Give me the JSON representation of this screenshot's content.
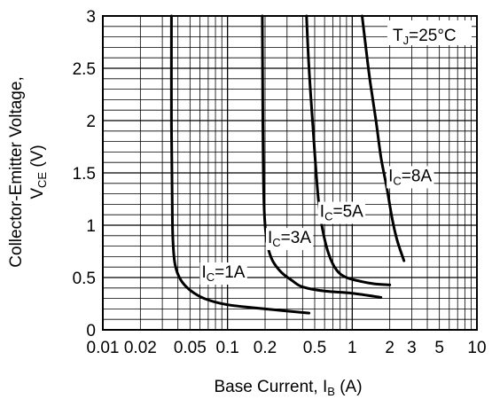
{
  "chart_data": {
    "type": "line",
    "x_scale": "log",
    "xlim": [
      0.01,
      10
    ],
    "ylim": [
      0,
      3
    ],
    "grid": true,
    "xlabel": "Base Current, I",
    "xlabel_sub": "B",
    "xlabel_unit": "(A)",
    "ylabel_line1": "Collector-Emitter Voltage,",
    "ylabel_line2": "V",
    "ylabel_sub": "CE",
    "ylabel_unit": "(V)",
    "x_ticks": [
      {
        "value": 0.01,
        "label": "0.01"
      },
      {
        "value": 0.02,
        "label": "0.02"
      },
      {
        "value": 0.05,
        "label": "0.05"
      },
      {
        "value": 0.1,
        "label": "0.1"
      },
      {
        "value": 0.2,
        "label": "0.2"
      },
      {
        "value": 0.5,
        "label": "0.5"
      },
      {
        "value": 1,
        "label": "1"
      },
      {
        "value": 2,
        "label": "2"
      },
      {
        "value": 3,
        "label": "3"
      },
      {
        "value": 5,
        "label": "5"
      },
      {
        "value": 10,
        "label": "10"
      }
    ],
    "y_ticks": [
      {
        "value": 0,
        "label": "0"
      },
      {
        "value": 0.5,
        "label": "0.5"
      },
      {
        "value": 1,
        "label": "1"
      },
      {
        "value": 1.5,
        "label": "1.5"
      },
      {
        "value": 2,
        "label": "2"
      },
      {
        "value": 2.5,
        "label": "2.5"
      },
      {
        "value": 3,
        "label": "3"
      }
    ],
    "annotation": {
      "main": "T",
      "sub": "J",
      "rest": "=25°C"
    },
    "series": [
      {
        "name": "IC=1A",
        "label_main": "I",
        "label_sub": "C",
        "label_rest": "=1A",
        "label_at": [
          0.062,
          0.5
        ],
        "points": [
          [
            0.0355,
            3.0
          ],
          [
            0.0355,
            2.0
          ],
          [
            0.036,
            1.2
          ],
          [
            0.0365,
            0.85
          ],
          [
            0.038,
            0.62
          ],
          [
            0.042,
            0.48
          ],
          [
            0.05,
            0.38
          ],
          [
            0.065,
            0.3
          ],
          [
            0.1,
            0.24
          ],
          [
            0.2,
            0.2
          ],
          [
            0.45,
            0.16
          ]
        ]
      },
      {
        "name": "IC=3A",
        "label_main": "I",
        "label_sub": "C",
        "label_rest": "=3A",
        "label_at": [
          0.21,
          0.83
        ],
        "points": [
          [
            0.19,
            3.0
          ],
          [
            0.192,
            2.0
          ],
          [
            0.195,
            1.3
          ],
          [
            0.2,
            1.0
          ],
          [
            0.21,
            0.8
          ],
          [
            0.23,
            0.66
          ],
          [
            0.27,
            0.55
          ],
          [
            0.33,
            0.47
          ],
          [
            0.4,
            0.41
          ],
          [
            0.6,
            0.37
          ],
          [
            1.0,
            0.35
          ],
          [
            1.7,
            0.31
          ]
        ]
      },
      {
        "name": "IC=5A",
        "label_main": "I",
        "label_sub": "C",
        "label_rest": "=5A",
        "label_at": [
          0.55,
          1.08
        ],
        "points": [
          [
            0.43,
            3.0
          ],
          [
            0.45,
            2.5
          ],
          [
            0.48,
            2.0
          ],
          [
            0.51,
            1.55
          ],
          [
            0.54,
            1.2
          ],
          [
            0.58,
            0.95
          ],
          [
            0.65,
            0.72
          ],
          [
            0.75,
            0.57
          ],
          [
            0.9,
            0.5
          ],
          [
            1.2,
            0.46
          ],
          [
            1.5,
            0.44
          ],
          [
            2.0,
            0.43
          ]
        ]
      },
      {
        "name": "IC=8A",
        "label_main": "I",
        "label_sub": "C",
        "label_rest": "=8A",
        "label_at": [
          1.95,
          1.42
        ],
        "points": [
          [
            1.2,
            3.0
          ],
          [
            1.3,
            2.65
          ],
          [
            1.4,
            2.35
          ],
          [
            1.55,
            2.0
          ],
          [
            1.7,
            1.65
          ],
          [
            1.9,
            1.35
          ],
          [
            2.1,
            1.05
          ],
          [
            2.3,
            0.85
          ],
          [
            2.6,
            0.66
          ]
        ]
      }
    ]
  }
}
